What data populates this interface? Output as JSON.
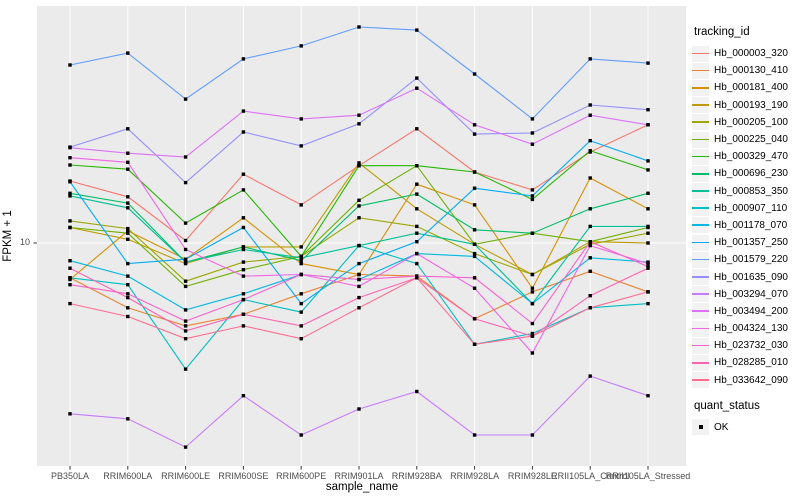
{
  "figure": {
    "background": "#FFFFFF",
    "panel_background": "#EBEBEB",
    "grid_color": "#FFFFFF",
    "tick_color": "#333333",
    "tick_label_color": "#4D4D4D"
  },
  "chart_data": {
    "type": "line",
    "title": "",
    "xlabel": "sample_name",
    "ylabel": "FPKM + 1",
    "y_scale": "log10",
    "y_ticks": [
      {
        "value": 10,
        "label": "10"
      }
    ],
    "ylim_approx": [
      1.7,
      65
    ],
    "grid": "major-on",
    "legend_position": "right",
    "point_marker": {
      "shape": "filled-square",
      "color": "#000000"
    },
    "categories": [
      "PB350LA",
      "RRIM600LA",
      "RRIM600LE",
      "RRIM600SE",
      "RRIM600PE",
      "RRIM901LA",
      "RRIM928BA",
      "RRIM928LA",
      "RRIM928LE",
      "RRII105LA_Control",
      "RRII105LA_Stressed"
    ],
    "series": [
      {
        "name": "Hb_000003_320",
        "color": "#F8766D",
        "values": [
          16.3,
          14.4,
          10.2,
          17.2,
          13.5,
          18.4,
          24.6,
          17.5,
          15.2,
          20.5,
          25.4
        ]
      },
      {
        "name": "Hb_000130_410",
        "color": "#EA8331",
        "values": [
          7.6,
          6.0,
          5.2,
          5.7,
          6.7,
          7.8,
          7.7,
          5.5,
          6.8,
          8.0,
          6.8
        ]
      },
      {
        "name": "Hb_000181_400",
        "color": "#D89000",
        "values": [
          7.5,
          11.0,
          8.8,
          12.2,
          8.5,
          7.8,
          15.9,
          13.5,
          7.0,
          16.7,
          13.1
        ]
      },
      {
        "name": "Hb_000193_190",
        "color": "#BE9C00",
        "values": [
          11.3,
          10.3,
          8.5,
          9.7,
          9.7,
          18.8,
          13.1,
          9.9,
          7.8,
          10.1,
          10.0
        ]
      },
      {
        "name": "Hb_000205_100",
        "color": "#9CA700",
        "values": [
          11.9,
          11.2,
          7.4,
          8.6,
          9.0,
          12.2,
          11.4,
          9.2,
          7.8,
          9.9,
          10.8
        ]
      },
      {
        "name": "Hb_000225_040",
        "color": "#6FB000",
        "values": [
          11.3,
          10.8,
          7.1,
          8.1,
          9.0,
          14.0,
          18.4,
          9.9,
          10.8,
          10.1,
          11.3
        ]
      },
      {
        "name": "Hb_000329_470",
        "color": "#24B700",
        "values": [
          18.5,
          17.9,
          11.7,
          15.2,
          9.0,
          18.4,
          18.4,
          17.5,
          14.1,
          20.7,
          17.8
        ]
      },
      {
        "name": "Hb_000696_230",
        "color": "#00BE67",
        "values": [
          14.8,
          13.7,
          8.6,
          9.7,
          8.7,
          13.4,
          14.7,
          11.1,
          10.8,
          13.1,
          14.8
        ]
      },
      {
        "name": "Hb_000853_350",
        "color": "#00C096",
        "values": [
          14.5,
          13.2,
          8.6,
          9.5,
          8.9,
          9.8,
          10.8,
          9.9,
          6.2,
          11.4,
          11.4
        ]
      },
      {
        "name": "Hb_000907_110",
        "color": "#00C0C0",
        "values": [
          7.6,
          7.2,
          3.7,
          6.4,
          5.8,
          9.8,
          8.5,
          4.5,
          4.9,
          6.0,
          6.2
        ]
      },
      {
        "name": "Hb_001178_070",
        "color": "#00B9E3",
        "values": [
          8.7,
          7.7,
          5.9,
          6.7,
          7.8,
          7.5,
          9.2,
          9.0,
          6.2,
          8.9,
          8.6
        ]
      },
      {
        "name": "Hb_001357_250",
        "color": "#00ACFC",
        "values": [
          16.2,
          8.5,
          8.8,
          11.3,
          6.2,
          8.5,
          10.1,
          15.4,
          14.5,
          22.4,
          19.1
        ]
      },
      {
        "name": "Hb_001579_220",
        "color": "#619CFF",
        "values": [
          40.7,
          44.7,
          31.1,
          42.7,
          47.3,
          54.9,
          53.6,
          37.9,
          26.6,
          42.7,
          41.3
        ]
      },
      {
        "name": "Hb_001635_090",
        "color": "#9590FF",
        "values": [
          21.3,
          24.6,
          16.1,
          24.0,
          21.5,
          25.6,
          36.7,
          23.6,
          23.8,
          29.7,
          28.6
        ]
      },
      {
        "name": "Hb_003294_070",
        "color": "#C77CFF",
        "values": [
          2.6,
          2.5,
          2.0,
          3.0,
          2.2,
          2.7,
          3.1,
          2.2,
          2.2,
          3.5,
          3.0
        ]
      },
      {
        "name": "Hb_003494_200",
        "color": "#DD71FA",
        "values": [
          21.2,
          20.3,
          19.7,
          28.3,
          26.6,
          27.4,
          33.9,
          25.4,
          21.8,
          27.4,
          25.4
        ]
      },
      {
        "name": "Hb_004324_130",
        "color": "#F365E6",
        "values": [
          19.6,
          18.9,
          9.5,
          7.7,
          7.8,
          7.1,
          9.2,
          7.0,
          4.2,
          9.8,
          8.5
        ]
      },
      {
        "name": "Hb_023732_030",
        "color": "#FD61CF",
        "values": [
          7.2,
          6.7,
          5.4,
          6.4,
          7.8,
          7.5,
          7.7,
          7.6,
          5.3,
          10.1,
          8.3
        ]
      },
      {
        "name": "Hb_028285_010",
        "color": "#FF64B3",
        "values": [
          8.2,
          6.5,
          5.0,
          5.7,
          5.2,
          6.5,
          7.6,
          5.5,
          4.8,
          6.6,
          8.2
        ]
      },
      {
        "name": "Hb_033642_090",
        "color": "#FF6C91",
        "values": [
          6.2,
          5.6,
          4.7,
          5.2,
          4.7,
          6.0,
          7.6,
          4.5,
          4.8,
          6.0,
          6.8
        ]
      }
    ]
  },
  "legend": {
    "color_legend": {
      "title": "tracking_id"
    },
    "shape_legend": {
      "title": "quant_status",
      "items": [
        {
          "label": "OK",
          "marker": "black-square"
        }
      ]
    }
  }
}
